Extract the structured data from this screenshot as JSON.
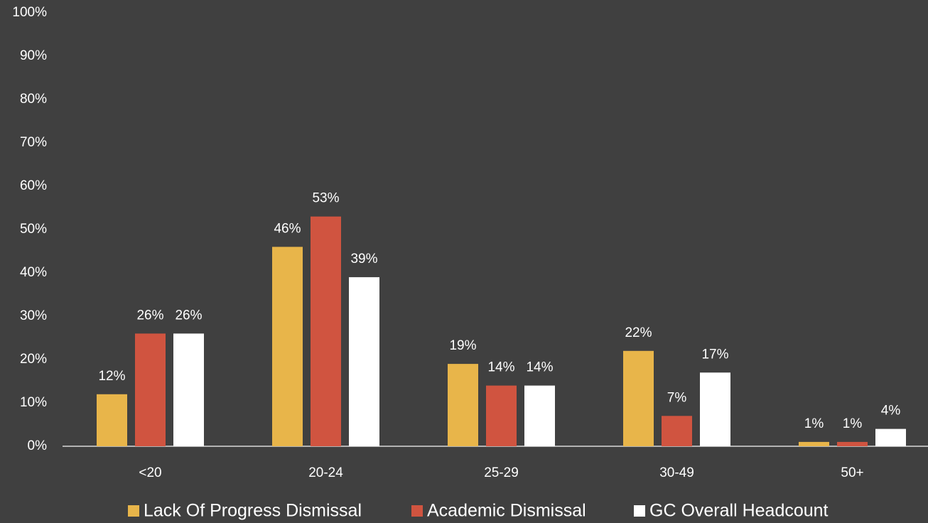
{
  "chart_data": {
    "type": "bar",
    "categories": [
      "<20",
      "20-24",
      "25-29",
      "30-49",
      "50+"
    ],
    "series": [
      {
        "name": "Lack Of Progress Dismissal",
        "color": "#e8b54a",
        "values": [
          12,
          46,
          19,
          22,
          1
        ],
        "value_labels": [
          "12%",
          "46%",
          "19%",
          "22%",
          "1%"
        ]
      },
      {
        "name": "Academic Dismissal",
        "color": "#d05440",
        "values": [
          26,
          53,
          14,
          7,
          1
        ],
        "value_labels": [
          "26%",
          "53%",
          "14%",
          "7%",
          "1%"
        ]
      },
      {
        "name": "GC Overall Headcount",
        "color": "#ffffff",
        "values": [
          26,
          39,
          14,
          17,
          4
        ],
        "value_labels": [
          "26%",
          "39%",
          "14%",
          "17%",
          "4%"
        ]
      }
    ],
    "ylim": [
      0,
      100
    ],
    "yticks": [
      {
        "value": 0,
        "label": "0%"
      },
      {
        "value": 10,
        "label": "10%"
      },
      {
        "value": 20,
        "label": "20%"
      },
      {
        "value": 30,
        "label": "30%"
      },
      {
        "value": 40,
        "label": "40%"
      },
      {
        "value": 50,
        "label": "50%"
      },
      {
        "value": 60,
        "label": "60%"
      },
      {
        "value": 70,
        "label": "70%"
      },
      {
        "value": 80,
        "label": "80%"
      },
      {
        "value": 90,
        "label": "90%"
      },
      {
        "value": 100,
        "label": "100%"
      }
    ],
    "grid": false,
    "legend": "bottom"
  }
}
